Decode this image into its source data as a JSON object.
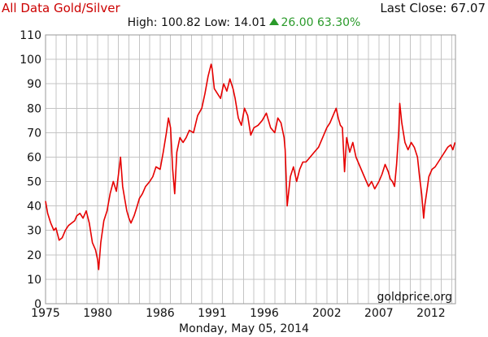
{
  "header": {
    "title": "All Data Gold/Silver",
    "last_close": "Last Close: 67.07",
    "high_low": "High: 100.82 Low: 14.01",
    "change": "26.00 63.30%"
  },
  "footer": {
    "date": "Monday, May 05, 2014",
    "watermark": "goldprice.org"
  },
  "colors": {
    "line": "#e60000",
    "title": "#cc0000",
    "change_up": "#2a9a2a",
    "grid": "#c4c4c4"
  },
  "chart_data": {
    "type": "line",
    "title": "All Data Gold/Silver",
    "xlabel": "",
    "ylabel": "",
    "xlim": [
      1975,
      2014.35
    ],
    "ylim": [
      0,
      110
    ],
    "x_ticks": [
      1975,
      1980,
      1986,
      1991,
      1996,
      2002,
      2007,
      2012
    ],
    "y_ticks": [
      0,
      10,
      20,
      30,
      40,
      50,
      60,
      70,
      80,
      90,
      100,
      110
    ],
    "grid": true,
    "legend": "none",
    "series": [
      {
        "name": "",
        "x": [
          1975.0,
          1975.2,
          1975.5,
          1975.8,
          1976.0,
          1976.3,
          1976.6,
          1976.9,
          1977.2,
          1977.5,
          1977.8,
          1978.0,
          1978.3,
          1978.6,
          1978.9,
          1979.2,
          1979.5,
          1979.8,
          1980.0,
          1980.1,
          1980.3,
          1980.6,
          1980.9,
          1981.2,
          1981.5,
          1981.8,
          1982.0,
          1982.2,
          1982.4,
          1982.6,
          1982.8,
          1983.0,
          1983.2,
          1983.5,
          1983.8,
          1984.0,
          1984.3,
          1984.6,
          1985.0,
          1985.3,
          1985.6,
          1986.0,
          1986.3,
          1986.6,
          1986.8,
          1987.0,
          1987.2,
          1987.4,
          1987.6,
          1987.9,
          1988.2,
          1988.5,
          1988.8,
          1989.2,
          1989.6,
          1990.0,
          1990.3,
          1990.6,
          1990.9,
          1991.0,
          1991.2,
          1991.5,
          1991.8,
          1992.1,
          1992.4,
          1992.7,
          1993.0,
          1993.2,
          1993.5,
          1993.8,
          1994.1,
          1994.4,
          1994.7,
          1995.0,
          1995.4,
          1995.8,
          1996.2,
          1996.6,
          1997.0,
          1997.3,
          1997.6,
          1997.9,
          1998.0,
          1998.2,
          1998.5,
          1998.8,
          1999.1,
          1999.4,
          1999.7,
          2000.0,
          2000.4,
          2000.8,
          2001.2,
          2001.6,
          2002.0,
          2002.3,
          2002.6,
          2002.9,
          2003.1,
          2003.3,
          2003.5,
          2003.7,
          2003.9,
          2004.2,
          2004.5,
          2004.8,
          2005.2,
          2005.6,
          2006.0,
          2006.3,
          2006.6,
          2007.0,
          2007.3,
          2007.6,
          2007.9,
          2008.1,
          2008.3,
          2008.5,
          2008.7,
          2008.9,
          2009.0,
          2009.2,
          2009.5,
          2009.8,
          2010.1,
          2010.4,
          2010.7,
          2010.9,
          2011.1,
          2011.3,
          2011.4,
          2011.6,
          2011.8,
          2012.1,
          2012.4,
          2012.7,
          2013.0,
          2013.3,
          2013.6,
          2013.9,
          2014.1,
          2014.3
        ],
        "values": [
          42,
          37,
          33,
          30,
          31,
          26,
          27,
          30,
          32,
          33,
          34,
          36,
          37,
          35,
          38,
          33,
          25,
          22,
          18,
          14,
          25,
          34,
          38,
          45,
          50,
          46,
          53,
          60,
          48,
          43,
          38,
          35,
          33,
          36,
          40,
          43,
          45,
          48,
          50,
          52,
          56,
          55,
          62,
          70,
          76,
          72,
          55,
          45,
          62,
          68,
          66,
          68,
          71,
          70,
          77,
          80,
          86,
          93,
          98,
          96,
          88,
          86,
          84,
          90,
          87,
          92,
          88,
          84,
          76,
          73,
          80,
          77,
          69,
          72,
          73,
          75,
          78,
          72,
          70,
          76,
          74,
          68,
          63,
          40,
          52,
          56,
          50,
          55,
          58,
          58,
          60,
          62,
          64,
          68,
          72,
          74,
          77,
          80,
          76,
          73,
          72,
          54,
          68,
          62,
          66,
          60,
          56,
          52,
          48,
          50,
          47,
          50,
          53,
          57,
          54,
          51,
          50,
          48,
          57,
          70,
          82,
          74,
          66,
          63,
          66,
          64,
          60,
          52,
          45,
          35,
          40,
          46,
          52,
          55,
          56,
          58,
          60,
          62,
          64,
          65,
          63,
          66
        ]
      }
    ]
  }
}
